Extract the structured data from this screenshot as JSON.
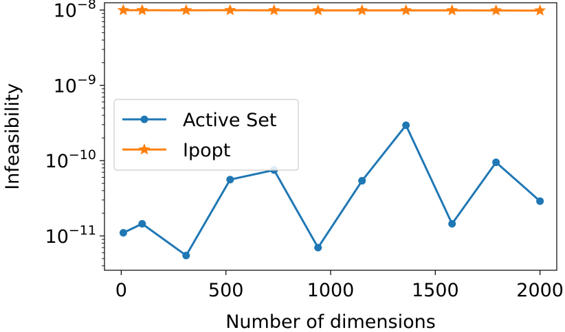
{
  "chart_data": {
    "type": "line",
    "title": "",
    "xlabel": "Number of dimensions",
    "ylabel": "Infeasibility",
    "xlim": [
      -80,
      2080
    ],
    "ylim": [
      3.5e-12,
      1.25e-08
    ],
    "xscale": "linear",
    "yscale": "log",
    "grid": false,
    "legend_position": "center-left",
    "x_ticks": [
      0,
      500,
      1000,
      1500,
      2000
    ],
    "x_tick_labels": [
      "0",
      "500",
      "1000",
      "1500",
      "2000"
    ],
    "y_ticks": [
      {
        "value": 1e-08,
        "base": "10",
        "exp": "−8"
      },
      {
        "value": 1e-09,
        "base": "10",
        "exp": "−9"
      },
      {
        "value": 1e-10,
        "base": "10",
        "exp": "−10"
      },
      {
        "value": 1e-11,
        "base": "10",
        "exp": "−11"
      }
    ],
    "series": [
      {
        "name": "Active Set",
        "color": "#1f77b4",
        "marker": "circle",
        "x": [
          10,
          100,
          310,
          520,
          730,
          940,
          1150,
          1360,
          1580,
          1790,
          2000
        ],
        "y": [
          1.1e-11,
          1.45e-11,
          5.5e-12,
          5.6e-11,
          7.5e-11,
          7e-12,
          5.4e-11,
          2.95e-10,
          1.45e-11,
          9.5e-11,
          2.9e-11
        ]
      },
      {
        "name": "Ipopt",
        "color": "#ff7f0e",
        "marker": "star",
        "x": [
          10,
          100,
          310,
          520,
          730,
          940,
          1150,
          1360,
          1580,
          1790,
          2000
        ],
        "y": [
          9.95e-09,
          9.95e-09,
          9.92e-09,
          9.95e-09,
          9.93e-09,
          9.9e-09,
          9.9e-09,
          9.9e-09,
          9.9e-09,
          9.87e-09,
          9.85e-09
        ]
      }
    ]
  }
}
